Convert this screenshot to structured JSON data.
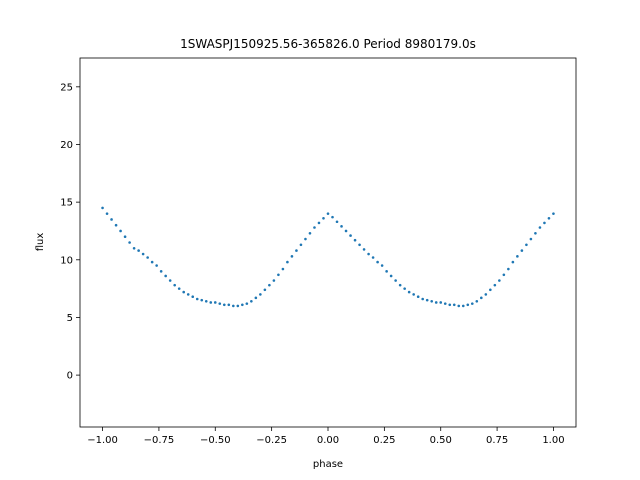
{
  "chart_data": {
    "type": "scatter",
    "title": "1SWASPJ150925.56-365826.0 Period 8980179.0s",
    "xlabel": "phase",
    "ylabel": "flux",
    "xlim": [
      -1.1,
      1.1
    ],
    "ylim": [
      -4.5,
      27.5
    ],
    "xticks": [
      -1.0,
      -0.75,
      -0.5,
      -0.25,
      0.0,
      0.25,
      0.5,
      0.75,
      1.0
    ],
    "xtick_labels": [
      "−1.00",
      "−0.75",
      "−0.50",
      "−0.25",
      "0.00",
      "0.25",
      "0.50",
      "0.75",
      "1.00"
    ],
    "yticks": [
      0,
      5,
      10,
      15,
      20,
      25
    ],
    "ytick_labels": [
      "0",
      "5",
      "10",
      "15",
      "20",
      "25"
    ],
    "grid": false,
    "marker_color": "#1f77b4",
    "series": [
      {
        "x": [
          -1.0,
          -0.98,
          -0.96,
          -0.94,
          -0.92,
          -0.9,
          -0.88,
          -0.86,
          -0.84,
          -0.82,
          -0.8,
          -0.78,
          -0.76,
          -0.74,
          -0.72,
          -0.7,
          -0.68,
          -0.66,
          -0.64,
          -0.62,
          -0.6,
          -0.58,
          -0.56,
          -0.54,
          -0.52,
          -0.5,
          -0.48,
          -0.46,
          -0.44,
          -0.42,
          -0.4,
          -0.38,
          -0.36,
          -0.34,
          -0.32,
          -0.3,
          -0.28,
          -0.26,
          -0.24,
          -0.22,
          -0.2,
          -0.18,
          -0.16,
          -0.14,
          -0.12,
          -0.1,
          -0.08,
          -0.06,
          -0.04,
          -0.02,
          0.0,
          0.02,
          0.04,
          0.06,
          0.08,
          0.1,
          0.12,
          0.14,
          0.16,
          0.18,
          0.2,
          0.22,
          0.24,
          0.26,
          0.28,
          0.3,
          0.32,
          0.34,
          0.36,
          0.38,
          0.4,
          0.42,
          0.44,
          0.46,
          0.48,
          0.5,
          0.52,
          0.54,
          0.56,
          0.58,
          0.6,
          0.62,
          0.64,
          0.66,
          0.68,
          0.7,
          0.72,
          0.74,
          0.76,
          0.78,
          0.8,
          0.82,
          0.84,
          0.86,
          0.88,
          0.9,
          0.92,
          0.94,
          0.96,
          0.98,
          1.0
        ],
        "y": [
          14.5,
          14.0,
          13.5,
          13.0,
          12.5,
          12.0,
          11.5,
          11.0,
          10.8,
          10.5,
          10.2,
          9.8,
          9.5,
          9.0,
          8.6,
          8.2,
          7.8,
          7.5,
          7.2,
          7.0,
          6.8,
          6.6,
          6.5,
          6.4,
          6.3,
          6.3,
          6.2,
          6.1,
          6.1,
          6.0,
          6.0,
          6.1,
          6.2,
          6.4,
          6.7,
          7.0,
          7.4,
          7.8,
          8.2,
          8.7,
          9.2,
          9.8,
          10.3,
          10.8,
          11.3,
          11.8,
          12.3,
          12.8,
          13.2,
          13.6,
          14.0,
          13.7,
          13.3,
          12.9,
          12.5,
          12.1,
          11.7,
          11.3,
          10.9,
          10.5,
          10.2,
          9.8,
          9.5,
          9.0,
          8.6,
          8.2,
          7.8,
          7.5,
          7.2,
          7.0,
          6.8,
          6.6,
          6.5,
          6.4,
          6.3,
          6.3,
          6.2,
          6.1,
          6.1,
          6.0,
          6.0,
          6.1,
          6.2,
          6.4,
          6.7,
          7.0,
          7.4,
          7.8,
          8.2,
          8.7,
          9.2,
          9.8,
          10.3,
          10.8,
          11.3,
          11.8,
          12.3,
          12.8,
          13.2,
          13.6,
          14.0
        ]
      }
    ]
  }
}
